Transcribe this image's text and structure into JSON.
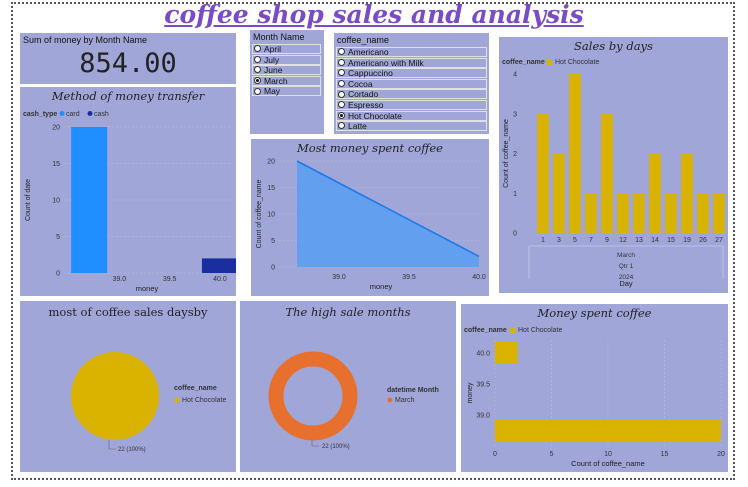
{
  "page_title": "coffee shop  sales and analysis",
  "kpi": {
    "label": "Sum of money by Month Name",
    "value": "854.00"
  },
  "month_slicer": {
    "header": "Month Name",
    "options": [
      "April",
      "July",
      "June",
      "March",
      "May"
    ],
    "selected": "March"
  },
  "coffee_slicer": {
    "header": "coffee_name",
    "options": [
      "Americano",
      "Americano with Milk",
      "Cappuccino",
      "Cocoa",
      "Cortado",
      "Espresso",
      "Hot Chocolate",
      "Latte"
    ],
    "selected": "Hot Chocolate"
  },
  "colors": {
    "panel": "#a0a6d8",
    "card": "#1f8fff",
    "cash": "#1a2ea0",
    "coffee": "#d9b300",
    "area": "#4d9cf5",
    "donut": "#e8702e"
  },
  "chart_data": [
    {
      "id": "transfer",
      "type": "bar",
      "title": "Method of money transfer",
      "legend_title": "cash_type",
      "series": [
        {
          "name": "card",
          "x": [
            38.7
          ],
          "values": [
            20
          ]
        },
        {
          "name": "cash",
          "x": [
            40.0
          ],
          "values": [
            2
          ]
        }
      ],
      "xlabel": "money",
      "ylabel": "Count of date",
      "xticks": [
        "39.0",
        "39.5",
        "40.0"
      ],
      "yticks": [
        "0",
        "5",
        "10",
        "15",
        "20"
      ],
      "ylim": [
        0,
        20
      ]
    },
    {
      "id": "most_money",
      "type": "area",
      "title": "Most money spent coffee",
      "x": [
        38.7,
        40.0
      ],
      "values": [
        20,
        2
      ],
      "xlabel": "money",
      "ylabel": "Count of coffee_name",
      "xticks": [
        "39.0",
        "39.5",
        "40.0"
      ],
      "yticks": [
        "0",
        "5",
        "10",
        "15",
        "20"
      ],
      "ylim": [
        0,
        20
      ]
    },
    {
      "id": "days",
      "type": "bar",
      "title": "Sales by days",
      "legend_title": "coffee_name",
      "series_name": "Hot Chocolate",
      "categories": [
        "1",
        "3",
        "5",
        "7",
        "9",
        "12",
        "13",
        "14",
        "15",
        "19",
        "26",
        "27"
      ],
      "values": [
        3,
        2,
        4,
        1,
        3,
        1,
        1,
        2,
        1,
        2,
        1,
        1
      ],
      "hierarchy": [
        "March",
        "Qtr 1",
        "2024"
      ],
      "xlabel": "Day",
      "ylabel": "Count of coffee_name",
      "yticks": [
        "0",
        "1",
        "2",
        "3",
        "4"
      ],
      "ylim": [
        0,
        4
      ]
    },
    {
      "id": "pie",
      "type": "pie",
      "title": "most of coffee sales daysby",
      "legend_title": "coffee_name",
      "slices": [
        {
          "name": "Hot Chocolate",
          "value": 22
        }
      ],
      "data_label": "22 (100%)"
    },
    {
      "id": "donut",
      "type": "pie",
      "title": "The high sale months",
      "legend_title": "datetime Month",
      "slices": [
        {
          "name": "March",
          "value": 22
        }
      ],
      "data_label": "22 (100%)"
    },
    {
      "id": "money_spent",
      "type": "bar",
      "title": "Money spent coffee",
      "legend_title": "coffee_name",
      "series_name": "Hot Chocolate",
      "categories": [
        "40.0",
        "38.7"
      ],
      "values": [
        2,
        20
      ],
      "xlabel": "Count of coffee_name",
      "ylabel": "money",
      "xticks": [
        "0",
        "5",
        "10",
        "15",
        "20"
      ],
      "yticks": [
        "40.0",
        "39.5",
        "39.0"
      ],
      "xlim": [
        0,
        20
      ]
    }
  ]
}
